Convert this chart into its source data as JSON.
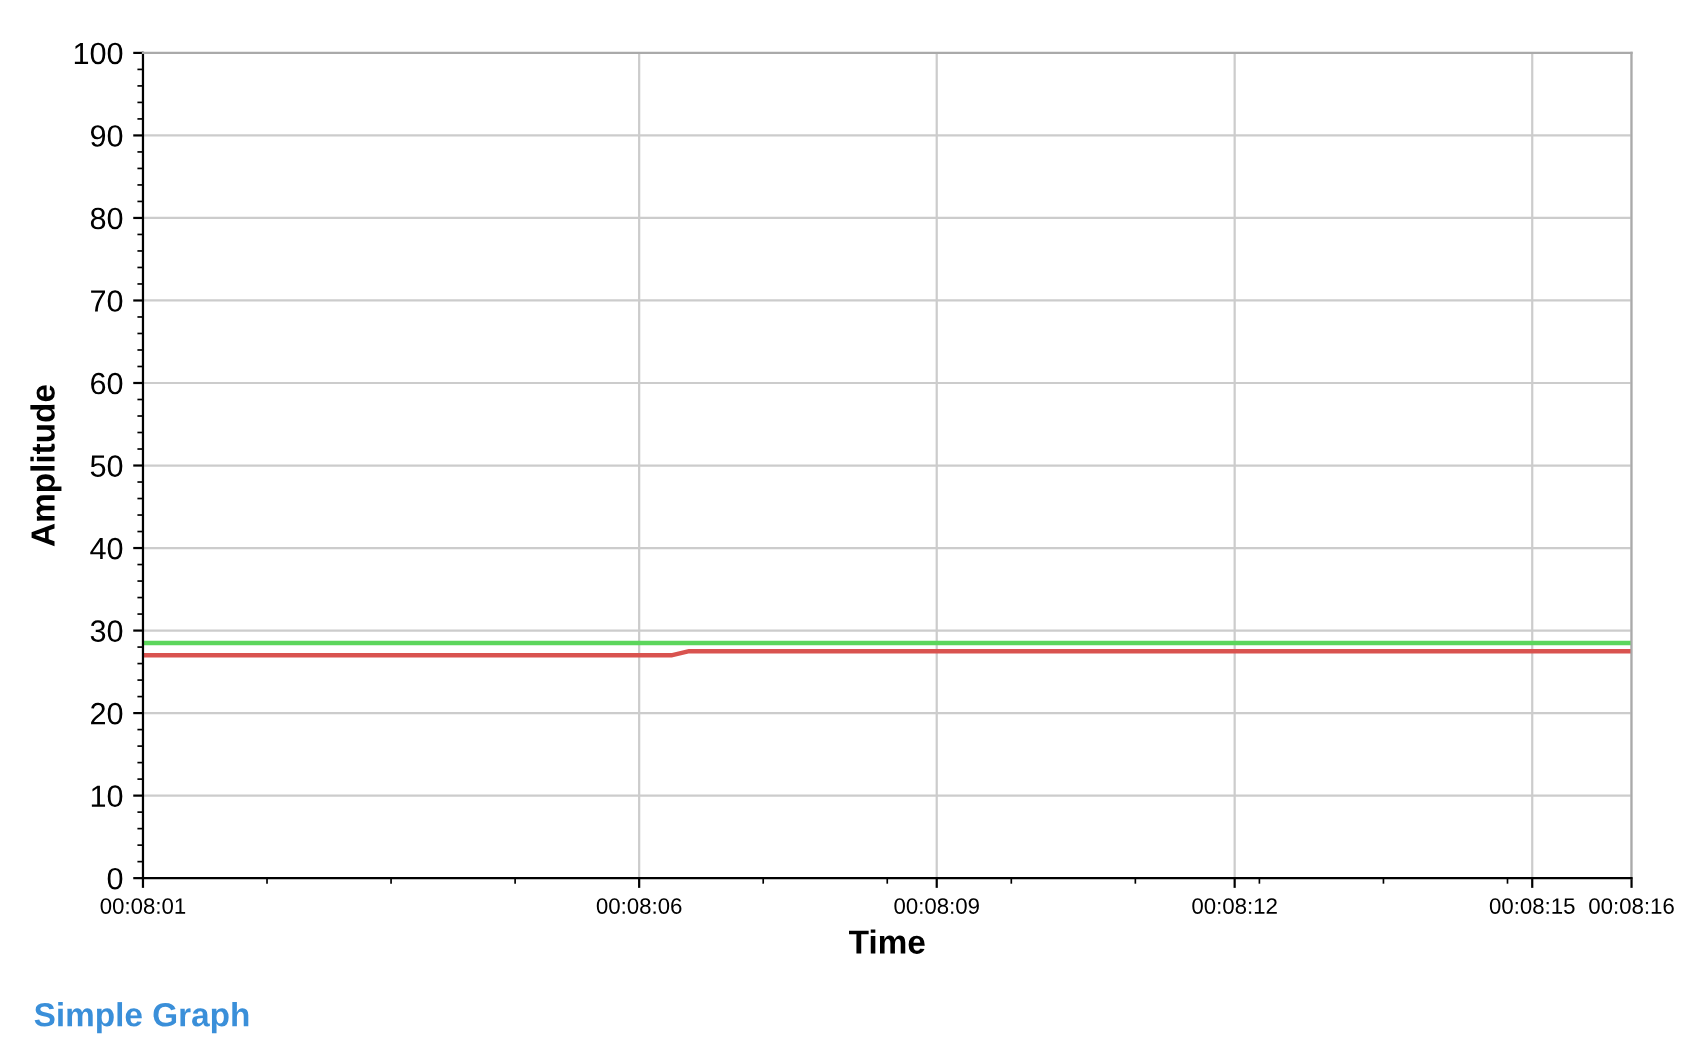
{
  "chart_data": {
    "type": "line",
    "xlabel": "Time",
    "ylabel": "Amplitude",
    "series": [
      {
        "color": "#d9534f",
        "x": [
          0.133611,
          0.13509,
          0.13514,
          0.137778
        ],
        "values": [
          27,
          27,
          27.5,
          27.5
        ]
      },
      {
        "color": "#5cd65c",
        "x": [
          0.133611,
          0.137778
        ],
        "values": [
          28.5,
          28.5
        ]
      }
    ],
    "xlim": [
      0.133611,
      0.137778
    ],
    "xticks": [
      {
        "value": 0.133611,
        "label": "00:08:01"
      },
      {
        "value": 0.135,
        "label": "00:08:06"
      },
      {
        "value": 0.135833,
        "label": "00:08:09"
      },
      {
        "value": 0.136667,
        "label": "00:08:12"
      },
      {
        "value": 0.1375,
        "label": "00:08:15"
      },
      {
        "value": 0.137778,
        "label": "00:08:16"
      }
    ],
    "ylim": [
      0,
      100
    ],
    "yticks": [
      0,
      10,
      20,
      30,
      40,
      50,
      60,
      70,
      80,
      90,
      100
    ],
    "grid": true,
    "marker": "none",
    "line_style": "solid",
    "legend": false,
    "annotations": [
      "Simple Graph"
    ]
  }
}
